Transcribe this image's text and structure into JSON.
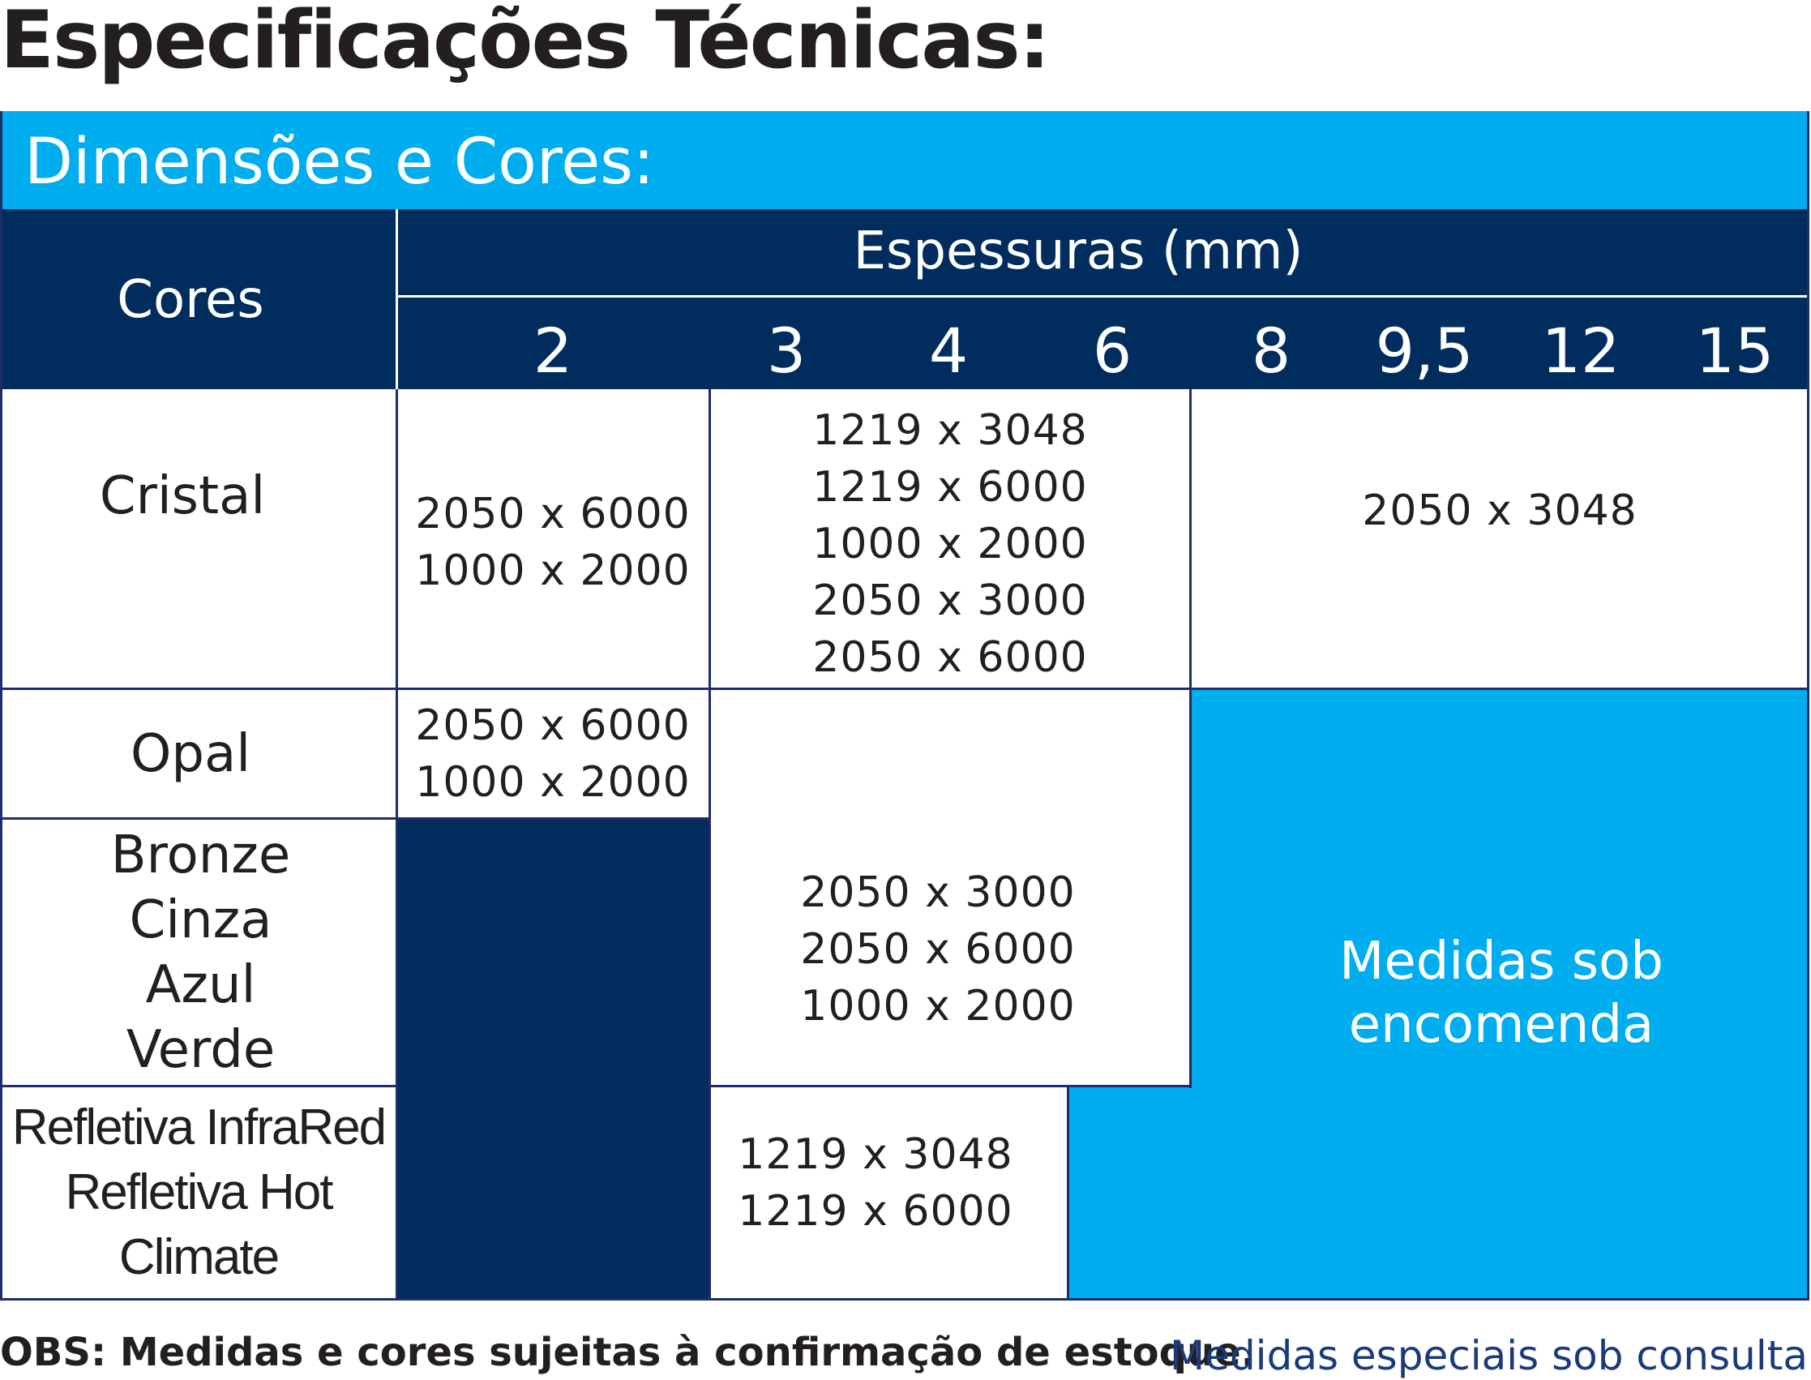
{
  "title": "Especificações Técnicas:",
  "section": "Dimensões e Cores:",
  "table": {
    "colors_header": "Cores",
    "thickness_header": "Espessuras (mm)",
    "thicknesses": [
      "2",
      "3",
      "4",
      "6",
      "8",
      "9,5",
      "12",
      "15"
    ],
    "rows": {
      "cristal": {
        "label": "Cristal",
        "col2": [
          "2050 x 6000",
          "1000 x 2000"
        ],
        "col3_6": [
          "1219 x 3048",
          "1219 x 6000",
          "1000 x 2000",
          "2050 x 3000",
          "2050 x 6000"
        ],
        "col8_15": [
          "2050 x 3048"
        ]
      },
      "opal": {
        "label": "Opal",
        "col2": [
          "2050 x 6000",
          "1000 x 2000"
        ]
      },
      "tinted": {
        "labels": [
          "Bronze",
          "Cinza",
          "Azul",
          "Verde"
        ],
        "col3_6": [
          "2050 x 3000",
          "2050 x 6000",
          "1000 x 2000"
        ]
      },
      "reflective": {
        "labels": [
          "Refletiva InfraRed",
          "Refletiva Hot",
          "Climate"
        ],
        "col3_4": [
          "1219 x 3048",
          "1219 x 6000"
        ]
      }
    },
    "special_order": [
      "Medidas sob",
      "encomenda"
    ]
  },
  "footer": {
    "note": "OBS: Medidas e cores sujeitas à confirmação de estoque.",
    "consult": "Medidas especiais sob consulta"
  },
  "colors": {
    "navy": "#002d5e",
    "light_blue": "#00adef",
    "text": "#231f20"
  }
}
